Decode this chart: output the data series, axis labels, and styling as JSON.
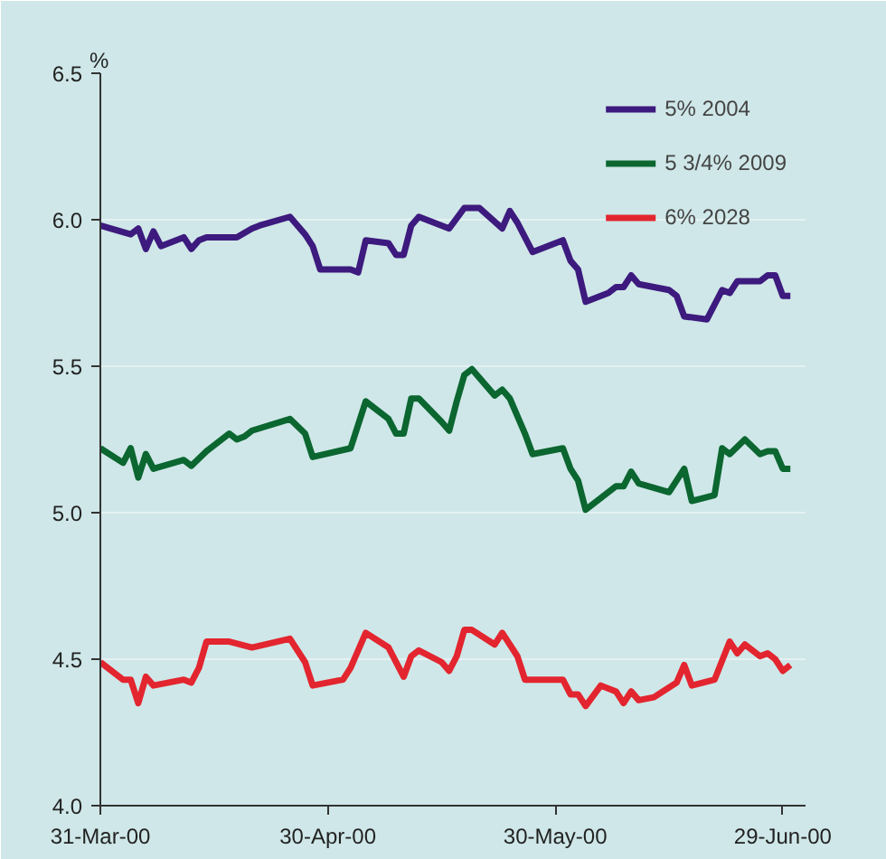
{
  "chart_data": {
    "type": "line",
    "ylabel": "%",
    "xlim": [
      "2000-03-31",
      "2000-07-02"
    ],
    "ylim": [
      4.0,
      6.5
    ],
    "xticks": [
      {
        "value": "2000-03-31",
        "label": "31-Mar-00"
      },
      {
        "value": "2000-04-30",
        "label": "30-Apr-00"
      },
      {
        "value": "2000-05-30",
        "label": "30-May-00"
      },
      {
        "value": "2000-06-29",
        "label": "29-Jun-00"
      }
    ],
    "yticks": [
      {
        "value": 4.0,
        "label": "4.0"
      },
      {
        "value": 4.5,
        "label": "4.5"
      },
      {
        "value": 5.0,
        "label": "5.0"
      },
      {
        "value": 5.5,
        "label": "5.5"
      },
      {
        "value": 6.0,
        "label": "6.0"
      },
      {
        "value": 6.5,
        "label": "6.5"
      }
    ],
    "grid": "y",
    "legend": "top right",
    "line_style": "solid",
    "marker": "none",
    "series": [
      {
        "name": "5% 2004",
        "color": "#3d1a7e",
        "x": [
          "2000-03-31",
          "2000-04-04",
          "2000-04-05",
          "2000-04-06",
          "2000-04-07",
          "2000-04-08",
          "2000-04-11",
          "2000-04-12",
          "2000-04-13",
          "2000-04-14",
          "2000-04-18",
          "2000-04-20",
          "2000-04-21",
          "2000-04-25",
          "2000-04-27",
          "2000-04-28",
          "2000-04-29",
          "2000-05-03",
          "2000-05-04",
          "2000-05-05",
          "2000-05-08",
          "2000-05-09",
          "2000-05-10",
          "2000-05-11",
          "2000-05-12",
          "2000-05-15",
          "2000-05-16",
          "2000-05-18",
          "2000-05-20",
          "2000-05-23",
          "2000-05-24",
          "2000-05-25",
          "2000-05-27",
          "2000-05-31",
          "2000-06-01",
          "2000-06-02",
          "2000-06-03",
          "2000-06-06",
          "2000-06-07",
          "2000-06-08",
          "2000-06-09",
          "2000-06-10",
          "2000-06-12",
          "2000-06-14",
          "2000-06-15",
          "2000-06-16",
          "2000-06-19",
          "2000-06-21",
          "2000-06-22",
          "2000-06-23",
          "2000-06-26",
          "2000-06-27",
          "2000-06-28",
          "2000-06-29",
          "2000-06-30"
        ],
        "values": [
          5.98,
          5.95,
          5.97,
          5.9,
          5.96,
          5.91,
          5.94,
          5.9,
          5.93,
          5.94,
          5.94,
          5.97,
          5.98,
          6.01,
          5.95,
          5.91,
          5.83,
          5.83,
          5.82,
          5.93,
          5.92,
          5.88,
          5.88,
          5.98,
          6.01,
          5.98,
          5.97,
          6.04,
          6.04,
          5.97,
          6.03,
          5.99,
          5.89,
          5.93,
          5.86,
          5.83,
          5.72,
          5.75,
          5.77,
          5.77,
          5.81,
          5.78,
          5.77,
          5.76,
          5.74,
          5.67,
          5.66,
          5.76,
          5.75,
          5.79,
          5.79,
          5.81,
          5.81,
          5.74,
          5.74
        ]
      },
      {
        "name": "5 3/4% 2009",
        "color": "#0b6630",
        "x": [
          "2000-03-31",
          "2000-04-03",
          "2000-04-04",
          "2000-04-05",
          "2000-04-06",
          "2000-04-07",
          "2000-04-11",
          "2000-04-12",
          "2000-04-14",
          "2000-04-15",
          "2000-04-17",
          "2000-04-18",
          "2000-04-19",
          "2000-04-20",
          "2000-04-25",
          "2000-04-27",
          "2000-04-28",
          "2000-05-03",
          "2000-05-05",
          "2000-05-08",
          "2000-05-09",
          "2000-05-10",
          "2000-05-11",
          "2000-05-12",
          "2000-05-15",
          "2000-05-16",
          "2000-05-17",
          "2000-05-18",
          "2000-05-19",
          "2000-05-22",
          "2000-05-23",
          "2000-05-24",
          "2000-05-26",
          "2000-05-27",
          "2000-05-31",
          "2000-06-01",
          "2000-06-02",
          "2000-06-03",
          "2000-06-05",
          "2000-06-07",
          "2000-06-08",
          "2000-06-09",
          "2000-06-10",
          "2000-06-14",
          "2000-06-16",
          "2000-06-17",
          "2000-06-20",
          "2000-06-21",
          "2000-06-22",
          "2000-06-24",
          "2000-06-26",
          "2000-06-27",
          "2000-06-28",
          "2000-06-29",
          "2000-06-30"
        ],
        "values": [
          5.22,
          5.17,
          5.22,
          5.12,
          5.2,
          5.15,
          5.18,
          5.16,
          5.21,
          5.23,
          5.27,
          5.25,
          5.26,
          5.28,
          5.32,
          5.27,
          5.19,
          5.22,
          5.38,
          5.32,
          5.27,
          5.27,
          5.39,
          5.39,
          5.31,
          5.28,
          5.38,
          5.47,
          5.49,
          5.4,
          5.42,
          5.39,
          5.27,
          5.2,
          5.22,
          5.15,
          5.11,
          5.01,
          5.05,
          5.09,
          5.09,
          5.14,
          5.1,
          5.07,
          5.15,
          5.04,
          5.06,
          5.22,
          5.2,
          5.25,
          5.2,
          5.21,
          5.21,
          5.15,
          5.15
        ]
      },
      {
        "name": "6% 2028",
        "color": "#e3252f",
        "x": [
          "2000-03-31",
          "2000-04-03",
          "2000-04-04",
          "2000-04-05",
          "2000-04-06",
          "2000-04-07",
          "2000-04-11",
          "2000-04-12",
          "2000-04-13",
          "2000-04-14",
          "2000-04-17",
          "2000-04-20",
          "2000-04-25",
          "2000-04-27",
          "2000-04-28",
          "2000-05-02",
          "2000-05-03",
          "2000-05-05",
          "2000-05-08",
          "2000-05-10",
          "2000-05-11",
          "2000-05-12",
          "2000-05-15",
          "2000-05-16",
          "2000-05-17",
          "2000-05-18",
          "2000-05-19",
          "2000-05-22",
          "2000-05-23",
          "2000-05-25",
          "2000-05-26",
          "2000-05-31",
          "2000-06-01",
          "2000-06-02",
          "2000-06-03",
          "2000-06-05",
          "2000-06-07",
          "2000-06-08",
          "2000-06-09",
          "2000-06-10",
          "2000-06-12",
          "2000-06-15",
          "2000-06-16",
          "2000-06-17",
          "2000-06-20",
          "2000-06-22",
          "2000-06-23",
          "2000-06-24",
          "2000-06-26",
          "2000-06-27",
          "2000-06-28",
          "2000-06-29",
          "2000-06-30"
        ],
        "values": [
          4.49,
          4.43,
          4.43,
          4.35,
          4.44,
          4.41,
          4.43,
          4.42,
          4.47,
          4.56,
          4.56,
          4.54,
          4.57,
          4.49,
          4.41,
          4.43,
          4.47,
          4.59,
          4.54,
          4.44,
          4.51,
          4.53,
          4.49,
          4.46,
          4.51,
          4.6,
          4.6,
          4.55,
          4.59,
          4.51,
          4.43,
          4.43,
          4.38,
          4.38,
          4.34,
          4.41,
          4.39,
          4.35,
          4.39,
          4.36,
          4.37,
          4.42,
          4.48,
          4.41,
          4.43,
          4.56,
          4.52,
          4.55,
          4.51,
          4.52,
          4.5,
          4.46,
          4.48
        ]
      }
    ]
  }
}
